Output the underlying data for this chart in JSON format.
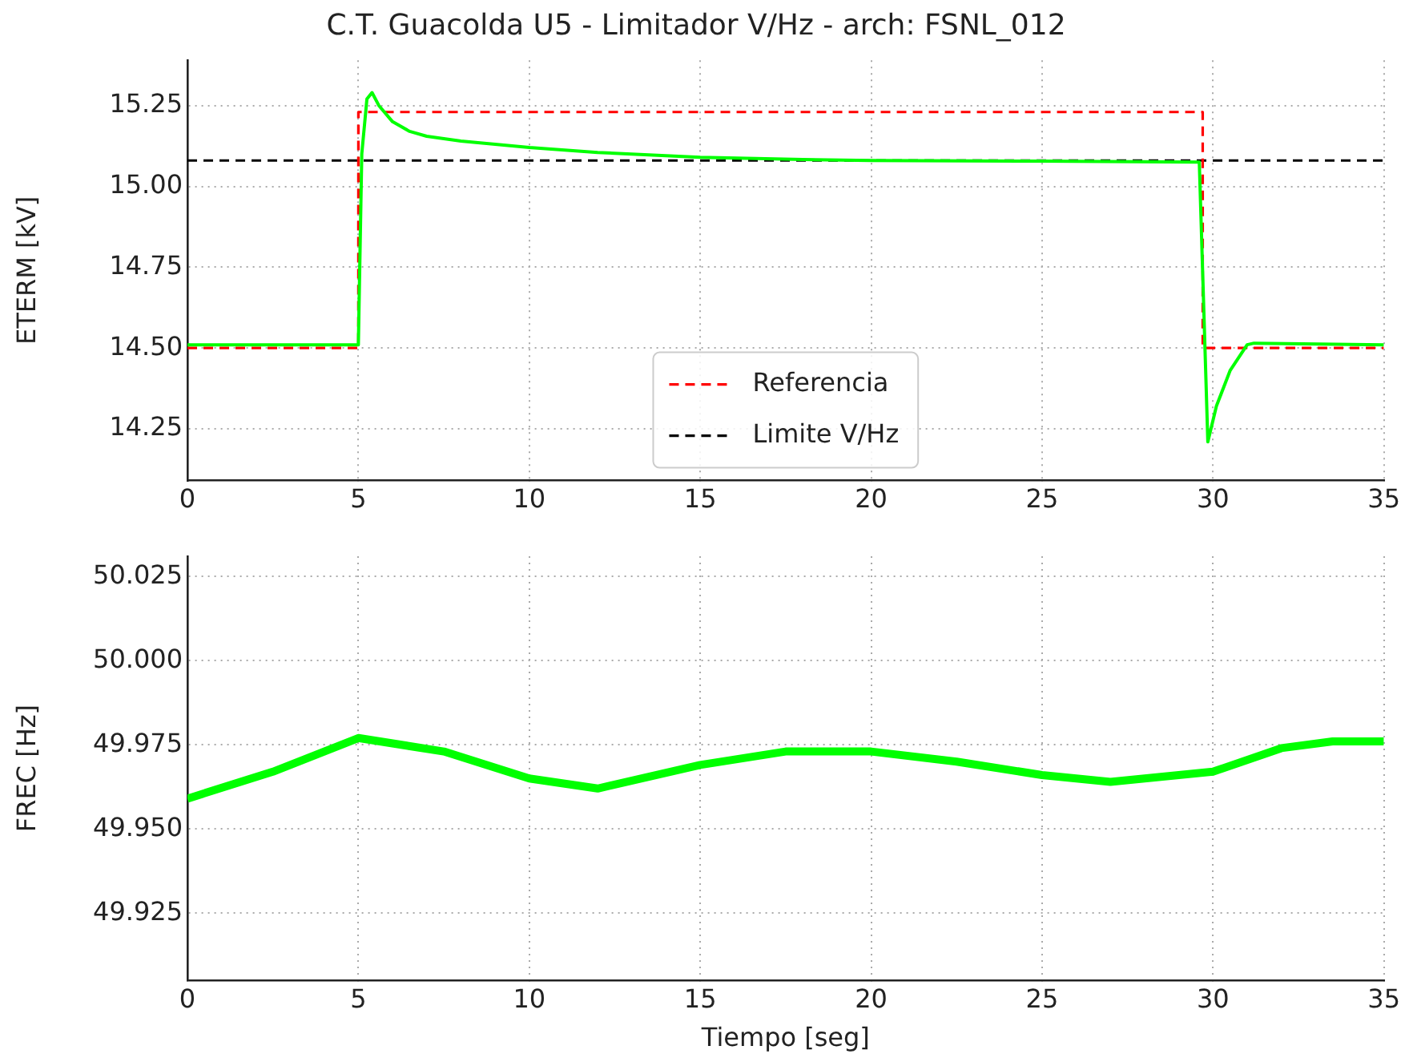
{
  "chart_data": [
    {
      "type": "line",
      "title": "C.T. Guacolda U5 - Limitador V/Hz - arch: FSNL_012",
      "ylabel": "ETERM [kV]",
      "xlim": [
        0,
        35
      ],
      "xticks": [
        0,
        5,
        10,
        15,
        20,
        25,
        30,
        35
      ],
      "ylim": [
        14.09,
        15.39
      ],
      "yticks": [
        14.25,
        {
          "value": 14.5,
          "label": "14.50"
        },
        14.75,
        {
          "value": 15.0,
          "label": "15.00"
        },
        15.25
      ],
      "grid": true,
      "legend": "bottom",
      "series": [
        {
          "color": "#00ff00",
          "x": [
            0,
            5.0,
            5.1,
            5.25,
            5.4,
            5.6,
            6.0,
            6.5,
            7,
            8,
            10,
            12,
            15,
            18,
            20,
            25,
            29.6,
            29.85,
            30.1,
            30.5,
            31.0,
            31.2,
            35
          ],
          "values": [
            14.51,
            14.51,
            15.1,
            15.27,
            15.29,
            15.25,
            15.2,
            15.17,
            15.155,
            15.14,
            15.12,
            15.105,
            15.09,
            15.083,
            15.08,
            15.078,
            15.075,
            14.21,
            14.32,
            14.43,
            14.51,
            14.515,
            14.51
          ]
        },
        {
          "name": "Referencia",
          "color": "#ff0000",
          "line_style": "dashed",
          "x": [
            0,
            5.0,
            5.0,
            29.7,
            29.7,
            35
          ],
          "values": [
            14.5,
            14.5,
            15.23,
            15.23,
            14.5,
            14.5
          ]
        },
        {
          "name": "Limite V/Hz",
          "color": "#000000",
          "line_style": "dashed",
          "x": [
            0,
            35
          ],
          "values": [
            15.08,
            15.08
          ]
        }
      ]
    },
    {
      "type": "line",
      "xlabel": "Tiempo [seg]",
      "ylabel": "FREC [Hz]",
      "xlim": [
        0,
        35
      ],
      "xticks": [
        0,
        5,
        10,
        15,
        20,
        25,
        30,
        35
      ],
      "ylim": [
        49.905,
        50.031
      ],
      "yticks": [
        49.925,
        {
          "value": 49.95,
          "label": "49.950"
        },
        49.975,
        {
          "value": 50.0,
          "label": "50.000"
        },
        50.025
      ],
      "grid": true,
      "series": [
        {
          "color": "#00ff00",
          "x": [
            0,
            2.5,
            5,
            7.5,
            10,
            12,
            15,
            17.5,
            20,
            22.5,
            25,
            27,
            30,
            32,
            33.5,
            35
          ],
          "values": [
            49.959,
            49.967,
            49.977,
            49.973,
            49.965,
            49.962,
            49.969,
            49.973,
            49.973,
            49.97,
            49.966,
            49.964,
            49.967,
            49.974,
            49.976,
            49.976
          ]
        }
      ]
    }
  ]
}
